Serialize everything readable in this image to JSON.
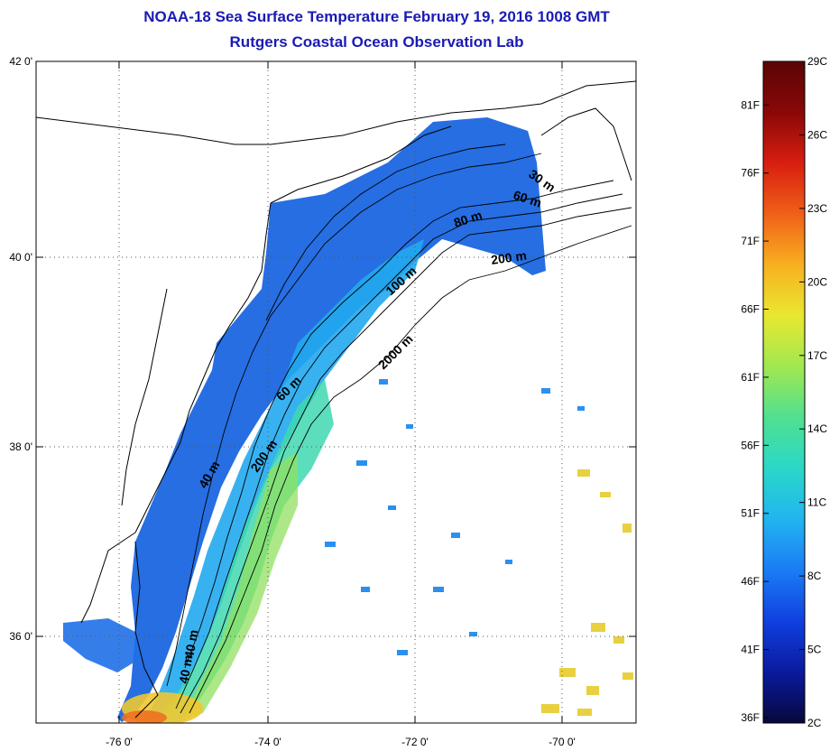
{
  "header": {
    "title": "NOAA-18 Sea Surface Temperature February 19, 2016 1008 GMT",
    "subtitle": "Rutgers Coastal Ocean Observation Lab"
  },
  "map": {
    "lat_ticks": [
      {
        "value": 42,
        "label": "42 0'"
      },
      {
        "value": 40,
        "label": "40 0'"
      },
      {
        "value": 38,
        "label": "38 0'"
      },
      {
        "value": 36,
        "label": "36 0'"
      }
    ],
    "lon_ticks": [
      {
        "value": -76,
        "label": "-76 0'"
      },
      {
        "value": -74,
        "label": "-74 0'"
      },
      {
        "value": -72,
        "label": "-72 0'"
      },
      {
        "value": -70,
        "label": "-70 0'"
      }
    ],
    "bathymetry_labels": [
      {
        "text": "30 m"
      },
      {
        "text": "60 m"
      },
      {
        "text": "80 m"
      },
      {
        "text": "200 m"
      },
      {
        "text": "100 m"
      },
      {
        "text": "2000 m"
      },
      {
        "text": "60 m"
      },
      {
        "text": "200 m"
      },
      {
        "text": "40 m"
      },
      {
        "text": "40 m"
      },
      {
        "text": "40 m"
      }
    ]
  },
  "colorbar": {
    "min_c": 2,
    "max_c": 29,
    "colors": [
      "#08083c",
      "#0a1a9e",
      "#1040e0",
      "#1a7cf5",
      "#22b4f0",
      "#2ad8c8",
      "#50e090",
      "#a0e850",
      "#e8e830",
      "#f8b020",
      "#f06018",
      "#d81e10",
      "#8a0808",
      "#5a0404"
    ],
    "celsius_labels": [
      "29C",
      "26C",
      "23C",
      "20C",
      "17C",
      "14C",
      "11C",
      "8C",
      "5C",
      "2C"
    ],
    "fahrenheit_labels": [
      "81F",
      "76F",
      "71F",
      "66F",
      "61F",
      "56F",
      "51F",
      "46F",
      "41F",
      "36F"
    ]
  },
  "colors": {
    "title": "#1a1ab4",
    "grid": "#555555"
  }
}
